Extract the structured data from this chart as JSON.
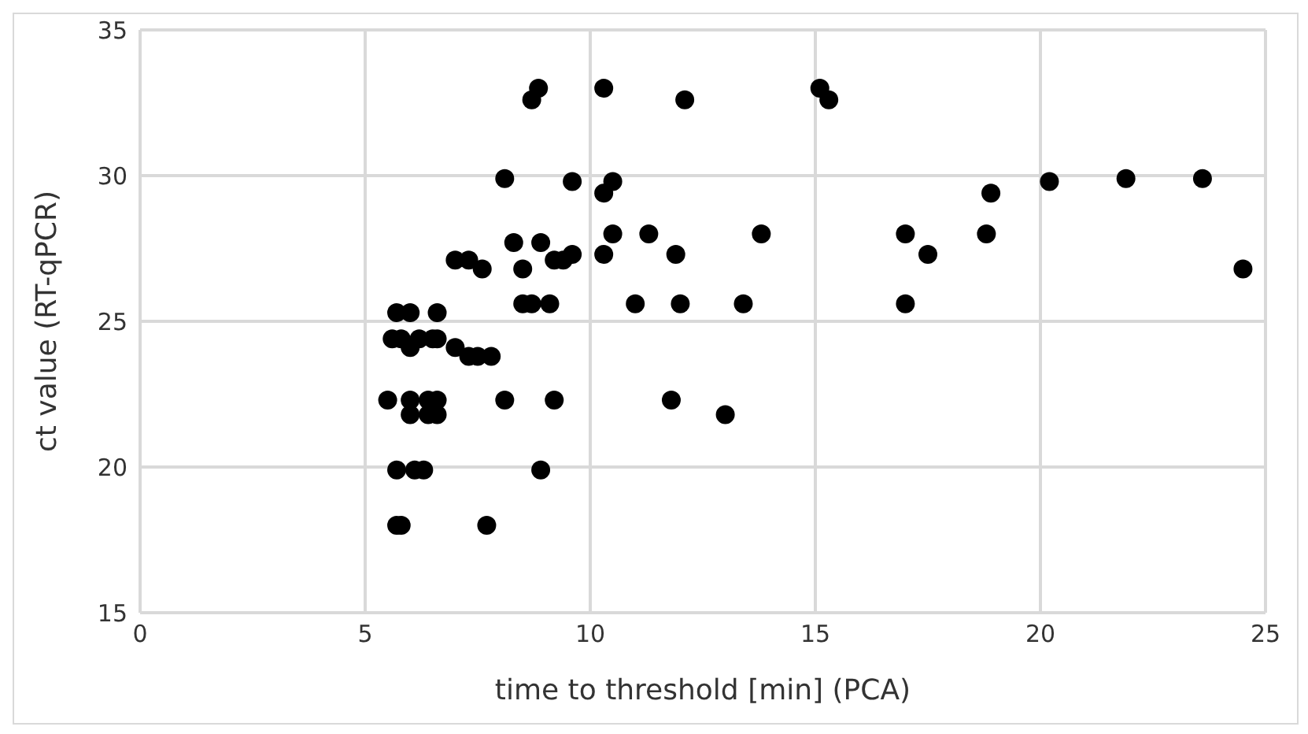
{
  "chart_data": {
    "type": "scatter",
    "xlabel": "time to threshold [min] (PCA)",
    "ylabel": "ct value (RT-qPCR)",
    "xlim": [
      0,
      25
    ],
    "xticks": [
      0,
      5,
      10,
      15,
      20,
      25
    ],
    "ylim": [
      15,
      35
    ],
    "yticks": [
      15,
      20,
      25,
      30,
      35
    ],
    "grid": true,
    "legend": false,
    "marker": "circle",
    "series": [
      {
        "color": "#000000",
        "x": [
          8.7,
          8.85,
          10.3,
          12.1,
          15.1,
          15.3,
          8.1,
          9.6,
          10.3,
          10.5,
          20.2,
          21.9,
          23.6,
          18.9,
          8.3,
          8.9,
          10.5,
          11.3,
          13.8,
          17.0,
          18.8,
          10.3,
          11.9,
          17.5,
          9.2,
          9.4,
          9.6,
          7.0,
          7.3,
          7.6,
          8.5,
          24.5,
          8.5,
          8.7,
          9.1,
          11.0,
          12.0,
          13.4,
          17.0,
          5.7,
          6.0,
          6.6,
          5.6,
          5.8,
          6.0,
          6.2,
          6.5,
          6.6,
          7.0,
          7.3,
          7.5,
          7.8,
          5.5,
          6.0,
          6.4,
          6.6,
          8.1,
          9.2,
          11.8,
          6.0,
          6.4,
          6.6,
          13.0,
          5.7,
          6.1,
          6.3,
          8.9,
          5.7,
          5.8,
          7.7
        ],
        "values": [
          32.6,
          33.0,
          33.0,
          32.6,
          33.0,
          32.6,
          29.9,
          29.8,
          29.4,
          29.8,
          29.8,
          29.9,
          29.9,
          29.4,
          27.7,
          27.7,
          28.0,
          28.0,
          28.0,
          28.0,
          28.0,
          27.3,
          27.3,
          27.3,
          27.1,
          27.1,
          27.3,
          27.1,
          27.1,
          26.8,
          26.8,
          26.8,
          25.6,
          25.6,
          25.6,
          25.6,
          25.6,
          25.6,
          25.6,
          25.3,
          25.3,
          25.3,
          24.4,
          24.4,
          24.1,
          24.4,
          24.4,
          24.4,
          24.1,
          23.8,
          23.8,
          23.8,
          22.3,
          22.3,
          22.3,
          22.3,
          22.3,
          22.3,
          22.3,
          21.8,
          21.8,
          21.8,
          21.8,
          19.9,
          19.9,
          19.9,
          19.9,
          18.0,
          18.0,
          18.0
        ]
      }
    ]
  }
}
